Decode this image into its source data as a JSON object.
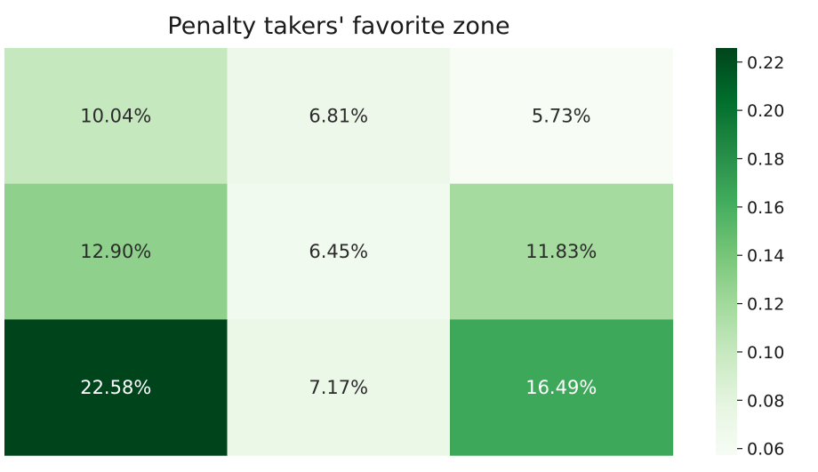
{
  "chart_data": {
    "type": "heatmap",
    "title": "Penalty takers' favorite zone",
    "xlabel": "",
    "ylabel": "",
    "rows": 3,
    "cols": 3,
    "values": [
      [
        0.1004,
        0.0681,
        0.0573
      ],
      [
        0.129,
        0.0645,
        0.1183
      ],
      [
        0.2258,
        0.0717,
        0.1649
      ]
    ],
    "labels": [
      [
        "10.04%",
        "6.81%",
        "5.73%"
      ],
      [
        "12.90%",
        "6.45%",
        "11.83%"
      ],
      [
        "22.58%",
        "7.17%",
        "16.49%"
      ]
    ],
    "colormap": "Greens",
    "colors": {
      "low": "#f7fcf5",
      "mid": "#74c476",
      "high": "#00441b",
      "dark_text": "#2b2b2b",
      "light_text": "#ffffff"
    },
    "colorbar": {
      "vmin": 0.0573,
      "vmax": 0.2258,
      "ticks": [
        0.06,
        0.08,
        0.1,
        0.12,
        0.14,
        0.16,
        0.18,
        0.2,
        0.22
      ],
      "tick_labels": [
        "0.06",
        "0.08",
        "0.10",
        "0.12",
        "0.14",
        "0.16",
        "0.18",
        "0.20",
        "0.22"
      ]
    },
    "grid": false,
    "legend": "colorbar-right"
  }
}
